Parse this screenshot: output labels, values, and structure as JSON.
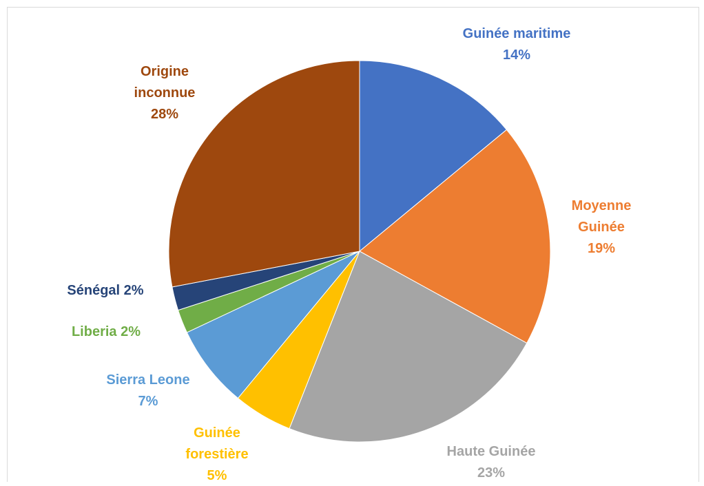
{
  "chart_data": {
    "type": "pie",
    "title": "",
    "slices": [
      {
        "label_lines": [
          "Guinée maritime",
          "14%"
        ],
        "value": 14,
        "color": "#4472C4"
      },
      {
        "label_lines": [
          "Moyenne",
          "Guinée",
          "19%"
        ],
        "value": 19,
        "color": "#ED7D31"
      },
      {
        "label_lines": [
          "Haute Guinée",
          "23%"
        ],
        "value": 23,
        "color": "#A5A5A5"
      },
      {
        "label_lines": [
          "Guinée",
          "forestière",
          "5%"
        ],
        "value": 5,
        "color": "#FFC000"
      },
      {
        "label_lines": [
          "Sierra Leone",
          "7%"
        ],
        "value": 7,
        "color": "#5B9BD5"
      },
      {
        "label_lines": [
          "Liberia 2%"
        ],
        "value": 2,
        "color": "#70AD47"
      },
      {
        "label_lines": [
          "Sénégal 2%"
        ],
        "value": 2,
        "color": "#264478"
      },
      {
        "label_lines": [
          "Origine",
          "inconnue",
          "28%"
        ],
        "value": 28,
        "color": "#9E480E"
      }
    ],
    "start_angle": "12 o'clock",
    "direction": "clockwise",
    "legend": "none"
  }
}
